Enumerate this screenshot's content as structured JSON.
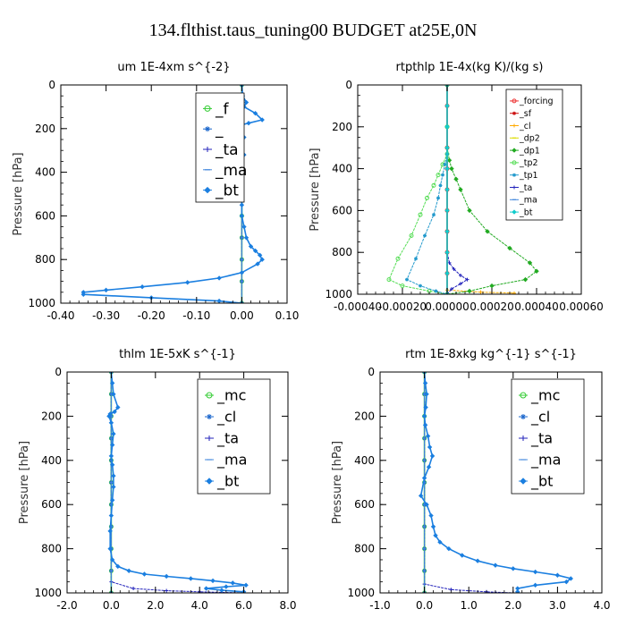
{
  "title": "134.flthist.taus_tuning00  BUDGET at25E,0N",
  "chart_data": [
    {
      "type": "line",
      "title": "um   1E-4xm  s^{-2}",
      "xlabel": "",
      "ylabel": "Pressure [hPa]",
      "xlim": [
        -0.4,
        0.1
      ],
      "ylim": [
        1000,
        0
      ],
      "xticks": [
        "-0.40",
        "-0.30",
        "-0.20",
        "-0.10",
        "0.00",
        "0.10"
      ],
      "yticks": [
        "0",
        "200",
        "400",
        "600",
        "800",
        "1000"
      ],
      "legend_position": "top-right",
      "legend_labels": [
        "_f",
        "_",
        "_ta",
        "_ma",
        "_bt"
      ],
      "series": [
        {
          "name": "_f",
          "color": "#33cc33",
          "x": [
            0.0,
            0.0,
            0.0,
            0.0,
            0.0,
            0.0,
            0.0,
            0.0,
            0.0,
            0.0,
            0.0
          ],
          "y": [
            0,
            100,
            200,
            300,
            400,
            500,
            600,
            700,
            800,
            900,
            1000
          ]
        },
        {
          "name": "_",
          "color": "#1a66cc",
          "x": [
            0.0,
            0.0,
            0.0,
            0.0,
            0.0,
            0.0,
            0.0,
            0.0,
            0.0,
            0.0,
            0.0
          ],
          "y": [
            0,
            100,
            200,
            300,
            400,
            500,
            600,
            700,
            800,
            900,
            1000
          ]
        },
        {
          "name": "_ta",
          "color": "#2222bb",
          "x": [
            0.0,
            0.0,
            0.0,
            0.0,
            0.0,
            0.0,
            0.0,
            0.0,
            0.0,
            0.0,
            0.0
          ],
          "y": [
            0,
            100,
            200,
            300,
            400,
            500,
            600,
            700,
            800,
            900,
            1000
          ]
        },
        {
          "name": "_ma",
          "color": "#4488dd",
          "x": [
            0.0,
            0.0,
            0.0,
            0.0,
            0.0,
            0.0,
            0.0,
            0.0,
            0.0,
            0.0,
            0.0
          ],
          "y": [
            0,
            100,
            200,
            300,
            400,
            500,
            600,
            700,
            800,
            900,
            1000
          ]
        },
        {
          "name": "_bt",
          "color": "#1b7fe0",
          "x": [
            0.0,
            0.002,
            0.01,
            0.005,
            0.03,
            0.045,
            0.015,
            -0.005,
            -0.015,
            -0.008,
            0.005,
            0.0,
            0.005,
            0.0,
            0.0,
            0.0,
            0.0,
            0.0,
            0.0,
            0.005,
            0.01,
            0.02,
            0.03,
            0.04,
            0.045,
            0.035,
            0.0,
            -0.05,
            -0.12,
            -0.22,
            -0.3,
            -0.35,
            -0.35,
            -0.2,
            -0.05,
            0.0
          ],
          "y": [
            0,
            50,
            80,
            100,
            130,
            160,
            175,
            185,
            200,
            215,
            240,
            280,
            320,
            360,
            400,
            450,
            500,
            550,
            600,
            650,
            700,
            740,
            760,
            780,
            800,
            820,
            860,
            885,
            905,
            925,
            940,
            950,
            960,
            975,
            990,
            1000
          ]
        }
      ]
    },
    {
      "type": "line",
      "title": "rtpthlp   1E-4x(kg K)/(kg s)",
      "xlabel": "",
      "ylabel": "Pressure [hPa]",
      "xlim": [
        -0.0004,
        0.0006
      ],
      "ylim": [
        1000,
        0
      ],
      "xticks": [
        "-0.00040",
        "-0.00020",
        "0.00000",
        "0.00020",
        "0.00040",
        "0.00060"
      ],
      "yticks": [
        "0",
        "200",
        "400",
        "600",
        "800",
        "1000"
      ],
      "legend_position": "top-right",
      "legend_labels": [
        "_forcing",
        "_sf",
        "_cl",
        "_dp2",
        "_dp1",
        "_tp2",
        "_tp1",
        "_ta",
        "_ma",
        "_bt"
      ],
      "series": [
        {
          "name": "_forcing",
          "color": "#ee3333",
          "x": [
            0.0,
            0.0,
            0.0,
            0.0,
            0.0,
            0.0,
            0.0,
            0.0,
            0.0,
            0.0,
            0.0
          ],
          "y": [
            0,
            100,
            200,
            300,
            400,
            500,
            600,
            700,
            800,
            900,
            1000
          ]
        },
        {
          "name": "_sf",
          "color": "#cc1111",
          "x": [
            0.0,
            0.0,
            0.0,
            0.0,
            0.0,
            0.0,
            0.0,
            0.0,
            0.0,
            0.0,
            0.0
          ],
          "y": [
            0,
            100,
            200,
            300,
            400,
            500,
            600,
            700,
            800,
            900,
            1000
          ]
        },
        {
          "name": "_cl",
          "color": "#ffaa00",
          "x": [
            0.0,
            0.0,
            0.0,
            0.0,
            0.0,
            0.0,
            0.0,
            0.0,
            0.0,
            0.0,
            0.0,
            0.00015,
            0.0003
          ],
          "y": [
            0,
            100,
            200,
            300,
            400,
            500,
            600,
            700,
            800,
            900,
            980,
            990,
            995
          ]
        },
        {
          "name": "_dp2",
          "color": "#dddd00",
          "x": [
            0.0,
            0.0,
            0.0,
            0.0,
            0.0,
            0.0,
            0.0,
            0.0,
            0.0,
            0.0,
            0.0
          ],
          "y": [
            0,
            100,
            200,
            300,
            400,
            500,
            600,
            700,
            800,
            900,
            1000
          ]
        },
        {
          "name": "_dp1",
          "color": "#22aa22",
          "x": [
            0.0,
            0.0,
            0.0,
            1e-05,
            2e-05,
            4e-05,
            6e-05,
            0.0001,
            0.00018,
            0.00028,
            0.00037,
            0.0004,
            0.00035,
            0.0002,
            0.0001,
            0.0
          ],
          "y": [
            0,
            200,
            300,
            360,
            400,
            450,
            500,
            600,
            700,
            780,
            850,
            890,
            930,
            960,
            985,
            1000
          ]
        },
        {
          "name": "_tp2",
          "color": "#55dd55",
          "x": [
            0.0,
            0.0,
            0.0,
            -2e-05,
            -4e-05,
            -6e-05,
            -9e-05,
            -0.00012,
            -0.00016,
            -0.00022,
            -0.00026,
            -0.0002,
            -8e-05,
            0.0
          ],
          "y": [
            0,
            200,
            330,
            380,
            430,
            480,
            540,
            620,
            720,
            830,
            930,
            960,
            985,
            1000
          ]
        },
        {
          "name": "_tp1",
          "color": "#2299cc",
          "x": [
            0.0,
            0.0,
            0.0,
            -1e-05,
            -2e-05,
            -3e-05,
            -4e-05,
            -6e-05,
            -0.0001,
            -0.00014,
            -0.00018,
            -0.00012,
            -5e-05,
            0.0
          ],
          "y": [
            0,
            200,
            330,
            380,
            430,
            480,
            540,
            620,
            720,
            830,
            930,
            960,
            985,
            1000
          ]
        },
        {
          "name": "_ta",
          "color": "#2222bb",
          "x": [
            0.0,
            0.0,
            0.0,
            0.0,
            0.0,
            1e-05,
            3e-05,
            6e-05,
            9e-05,
            6e-05,
            2e-05,
            0.0
          ],
          "y": [
            0,
            300,
            500,
            700,
            800,
            850,
            880,
            910,
            930,
            950,
            975,
            1000
          ]
        },
        {
          "name": "_ma",
          "color": "#4488dd",
          "x": [
            0.0,
            0.0,
            0.0,
            0.0,
            0.0,
            0.0,
            0.0,
            0.0,
            0.0,
            0.0,
            0.0
          ],
          "y": [
            0,
            100,
            200,
            300,
            400,
            500,
            600,
            700,
            800,
            900,
            1000
          ]
        },
        {
          "name": "_bt",
          "color": "#11cccc",
          "x": [
            0.0,
            0.0,
            0.0,
            0.0,
            0.0,
            0.0,
            0.0,
            0.0,
            0.0,
            0.0,
            0.0
          ],
          "y": [
            0,
            100,
            200,
            300,
            400,
            500,
            600,
            700,
            800,
            900,
            1000
          ]
        }
      ]
    },
    {
      "type": "line",
      "title": "thlm   1E-5xK  s^{-1}",
      "xlabel": "",
      "ylabel": "Pressure [hPa]",
      "xlim": [
        -2.0,
        8.0
      ],
      "ylim": [
        1000,
        0
      ],
      "xticks": [
        "-2.0",
        "0.0",
        "2.0",
        "4.0",
        "6.0",
        "8.0"
      ],
      "yticks": [
        "0",
        "200",
        "400",
        "600",
        "800",
        "1000"
      ],
      "legend_position": "top-right",
      "legend_labels": [
        "_mc",
        "_cl",
        "_ta",
        "_ma",
        "_bt"
      ],
      "series": [
        {
          "name": "_mc",
          "color": "#33cc33",
          "x": [
            0.0,
            0.0,
            0.0,
            0.0,
            0.0,
            0.0,
            0.0,
            0.0,
            0.0,
            0.0,
            0.0
          ],
          "y": [
            0,
            100,
            200,
            300,
            400,
            500,
            600,
            700,
            800,
            900,
            1000
          ]
        },
        {
          "name": "_cl",
          "color": "#1a66cc",
          "x": [
            0.0,
            0.0,
            0.0,
            0.0,
            0.0,
            0.0,
            0.0,
            0.0,
            0.0,
            0.0,
            0.0
          ],
          "y": [
            0,
            100,
            200,
            300,
            400,
            500,
            600,
            700,
            800,
            900,
            1000
          ]
        },
        {
          "name": "_ta",
          "color": "#2222bb",
          "x": [
            0.0,
            0.0,
            0.0,
            0.0,
            0.0,
            0.0,
            0.0,
            0.0,
            0.0,
            0.0,
            0.0,
            1.0,
            2.5,
            4.0,
            6.0
          ],
          "y": [
            0,
            100,
            200,
            300,
            400,
            500,
            600,
            700,
            800,
            900,
            950,
            980,
            990,
            995,
            1000
          ]
        },
        {
          "name": "_ma",
          "color": "#4488dd",
          "x": [
            0.0,
            0.0,
            0.0,
            0.0,
            0.0,
            0.0,
            0.0,
            0.0,
            0.0,
            0.0,
            0.0
          ],
          "y": [
            0,
            100,
            200,
            300,
            400,
            500,
            600,
            700,
            800,
            900,
            1000
          ]
        },
        {
          "name": "_bt",
          "color": "#1b7fe0",
          "x": [
            0.0,
            0.05,
            0.1,
            0.3,
            0.15,
            -0.05,
            -0.1,
            0.0,
            0.1,
            0.05,
            0.0,
            0.05,
            0.1,
            0.1,
            0.05,
            0.0,
            -0.05,
            -0.05,
            0.05,
            0.3,
            0.8,
            1.5,
            2.5,
            3.6,
            4.6,
            5.5,
            6.1,
            5.2,
            4.3,
            5.0,
            6.0
          ],
          "y": [
            0,
            50,
            100,
            160,
            180,
            190,
            200,
            230,
            280,
            330,
            380,
            420,
            470,
            520,
            580,
            650,
            720,
            800,
            850,
            880,
            900,
            915,
            925,
            935,
            945,
            955,
            965,
            972,
            980,
            988,
            995
          ]
        }
      ]
    },
    {
      "type": "line",
      "title": "rtm   1E-8xkg  kg^{-1}  s^{-1}",
      "xlabel": "",
      "ylabel": "Pressure [hPa]",
      "xlim": [
        -1.0,
        4.0
      ],
      "ylim": [
        1000,
        0
      ],
      "xticks": [
        "-1.0",
        "0.0",
        "1.0",
        "2.0",
        "3.0",
        "4.0"
      ],
      "yticks": [
        "0",
        "200",
        "400",
        "600",
        "800",
        "1000"
      ],
      "legend_position": "top-right",
      "legend_labels": [
        "_mc",
        "_cl",
        "_ta",
        "_ma",
        "_bt"
      ],
      "series": [
        {
          "name": "_mc",
          "color": "#33cc33",
          "x": [
            0.0,
            0.0,
            0.0,
            0.0,
            0.0,
            0.0,
            0.0,
            0.0,
            0.0,
            0.0,
            0.0
          ],
          "y": [
            0,
            100,
            200,
            300,
            400,
            500,
            600,
            700,
            800,
            900,
            1000
          ]
        },
        {
          "name": "_cl",
          "color": "#1a66cc",
          "x": [
            0.0,
            0.0,
            0.0,
            0.0,
            0.0,
            0.0,
            0.0,
            0.0,
            0.0,
            0.0,
            0.0
          ],
          "y": [
            0,
            100,
            200,
            300,
            400,
            500,
            600,
            700,
            800,
            900,
            1000
          ]
        },
        {
          "name": "_ta",
          "color": "#2222bb",
          "x": [
            0.0,
            0.0,
            0.0,
            0.0,
            0.0,
            0.0,
            0.0,
            0.0,
            0.0,
            0.0,
            0.0,
            0.6,
            1.4,
            2.0
          ],
          "y": [
            0,
            100,
            200,
            300,
            400,
            500,
            600,
            700,
            800,
            900,
            960,
            985,
            995,
            1000
          ]
        },
        {
          "name": "_ma",
          "color": "#4488dd",
          "x": [
            0.0,
            0.0,
            0.0,
            0.0,
            0.0,
            0.0,
            0.0,
            0.0,
            0.0,
            0.0,
            0.0
          ],
          "y": [
            0,
            100,
            200,
            300,
            400,
            500,
            600,
            700,
            800,
            900,
            1000
          ]
        },
        {
          "name": "_bt",
          "color": "#1b7fe0",
          "x": [
            0.0,
            0.02,
            0.05,
            0.03,
            0.0,
            0.02,
            0.08,
            0.12,
            0.18,
            0.1,
            0.0,
            -0.08,
            0.05,
            0.15,
            0.2,
            0.25,
            0.35,
            0.55,
            0.85,
            1.2,
            1.6,
            2.0,
            2.5,
            3.0,
            3.3,
            3.2,
            2.5,
            2.1,
            2.1
          ],
          "y": [
            0,
            50,
            100,
            160,
            200,
            240,
            290,
            340,
            380,
            430,
            480,
            560,
            600,
            650,
            700,
            740,
            770,
            800,
            830,
            855,
            875,
            890,
            905,
            920,
            935,
            950,
            965,
            980,
            995
          ]
        }
      ]
    }
  ]
}
